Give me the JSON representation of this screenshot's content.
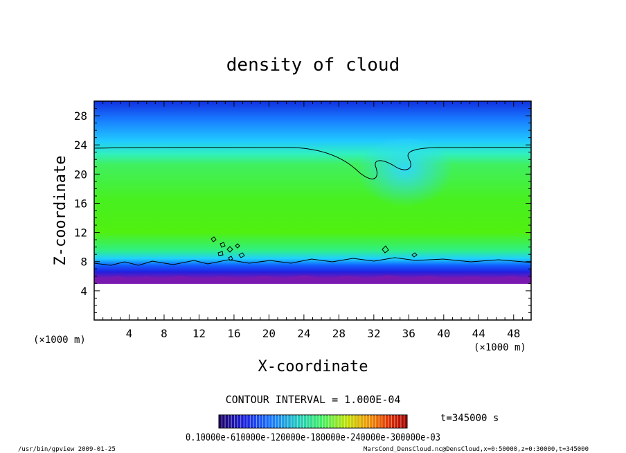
{
  "chart_data": {
    "type": "heatmap",
    "title": "density of cloud",
    "xlabel": "X-coordinate",
    "ylabel": "Z-coordinate",
    "x_unit": "(×1000 m)",
    "z_unit": "(×1000 m)",
    "xlim": [
      0,
      50
    ],
    "ylim": [
      0,
      30
    ],
    "x_ticks": [
      4,
      8,
      12,
      16,
      20,
      24,
      28,
      32,
      36,
      40,
      44,
      48
    ],
    "y_ticks": [
      4,
      8,
      12,
      16,
      20,
      24,
      28
    ],
    "contour_interval_text": "CONTOUR INTERVAL = 1.000E-04",
    "time_text": "t=345000 s",
    "colorbar_label_text": "0.10000e-610000e-120000e-180000e-240000e-300000e-03",
    "colormap": [
      "#1c0060",
      "#3a10a0",
      "#1a20e0",
      "#1060ff",
      "#18b0ff",
      "#20e0f0",
      "#30f0b0",
      "#40f060",
      "#50f010",
      "#a0f000",
      "#e0d000",
      "#f08000",
      "#e03000",
      "#c00000",
      "#900000"
    ],
    "regions": [
      {
        "z_range": [
          0,
          6
        ],
        "description": "no cloud",
        "color": "#ffffff"
      },
      {
        "z_range": [
          6,
          7
        ],
        "color": "#7a1ab0"
      },
      {
        "z_range": [
          7,
          8.5
        ],
        "color": "#2040ff"
      },
      {
        "z_range": [
          8.5,
          22
        ],
        "color": "#40f010"
      },
      {
        "z_range": [
          22,
          30
        ],
        "color": "#1870ff"
      }
    ],
    "contour_levels_visible": [
      0.0001
    ],
    "footer_left": "/usr/bin/gpview  2009-01-25",
    "footer_right": "MarsCond_DensCloud.nc@DensCloud,x=0:50000,z=0:30000,t=345000"
  }
}
